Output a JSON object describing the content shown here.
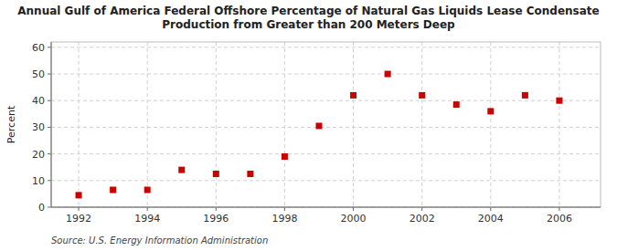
{
  "chart_data": {
    "type": "scatter",
    "title": "Annual Gulf of America Federal Offshore Percentage of Natural Gas Liquids Lease Condensate\nProduction from Greater than 200 Meters Deep",
    "ylabel": "Percent",
    "annotations": [
      "Source: U.S. Energy Information Administration"
    ],
    "x": [
      1992,
      1993,
      1994,
      1995,
      1996,
      1997,
      1998,
      1999,
      2000,
      2001,
      2002,
      2003,
      2004,
      2005,
      2006
    ],
    "values": [
      4.5,
      6.5,
      6.5,
      14.0,
      12.5,
      12.5,
      19.0,
      30.5,
      42.0,
      50.0,
      42.0,
      38.5,
      36.0,
      42.0,
      40.0
    ],
    "color": "#cc0000",
    "marker": "square",
    "xlim": [
      1991.2,
      2007.2
    ],
    "ylim": [
      0,
      62
    ],
    "xticks": [
      1992,
      1994,
      1996,
      1998,
      2000,
      2002,
      2004,
      2006
    ],
    "yticks": [
      0,
      10,
      20,
      30,
      40,
      50,
      60
    ],
    "grid": true
  }
}
